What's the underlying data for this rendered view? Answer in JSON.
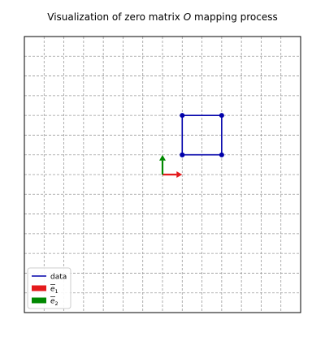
{
  "chart_data": {
    "type": "line",
    "title": "Visualization of zero matrix O mapping process",
    "title_parts": {
      "before": "Visualization of zero matrix ",
      "symbol": "O",
      "after": " mapping process"
    },
    "xlim": [
      -7,
      7
    ],
    "ylim": [
      -7,
      7
    ],
    "grid": true,
    "grid_style": "dashed",
    "legend_placement": "lower-left",
    "series": [
      {
        "name": "data",
        "kind": "polyline",
        "color": "#0000aa",
        "marker": "circle",
        "points": [
          [
            1,
            1
          ],
          [
            3,
            1
          ],
          [
            3,
            3
          ],
          [
            1,
            3
          ],
          [
            1,
            1
          ]
        ]
      },
      {
        "name": "e1",
        "kind": "arrow",
        "color": "#e41a1c",
        "from": [
          0,
          0
        ],
        "to": [
          1,
          0
        ]
      },
      {
        "name": "e2",
        "kind": "arrow",
        "color": "#008800",
        "from": [
          0,
          0
        ],
        "to": [
          0,
          1
        ]
      }
    ],
    "legend": [
      {
        "label": "data",
        "kind": "line",
        "color": "#0000aa"
      },
      {
        "label": "e",
        "subscript": "1",
        "kind": "patch",
        "color": "#e41a1c"
      },
      {
        "label": "e",
        "subscript": "2",
        "kind": "patch",
        "color": "#008800"
      }
    ]
  }
}
